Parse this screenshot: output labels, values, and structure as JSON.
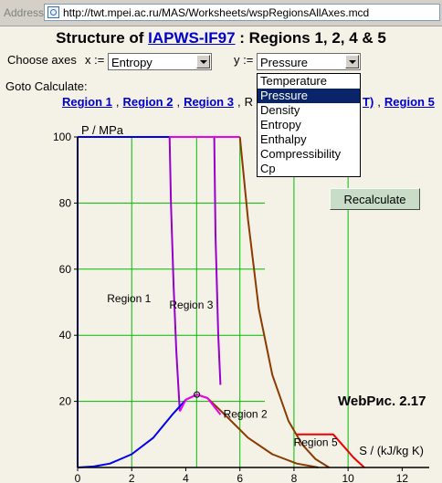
{
  "browser": {
    "address_label": "Address",
    "url": "http://twt.mpei.ac.ru/MAS/Worksheets/wspRegionsAllAxes.mcd"
  },
  "header": {
    "title_prefix": "Structure of ",
    "title_link": "IAPWS-IF97",
    "title_suffix": " : Regions 1, 2, 4 & 5"
  },
  "axes_form": {
    "choose_label": "Choose axes",
    "x_label": "x :=",
    "x_value": "Entropy",
    "y_label": "y :=",
    "y_value": "Pressure",
    "y_options": [
      "Temperature",
      "Pressure",
      "Density",
      "Entropy",
      "Enthalpy",
      "Compressibility",
      "Cp"
    ],
    "y_selected_index": 1
  },
  "goto": {
    "label": "Goto Calculate:",
    "links": [
      "Region 1",
      "Region 2",
      "Region 3",
      "R",
      "T)",
      "Region 5"
    ]
  },
  "recalculate_label": "Recalculate",
  "watermark": "WebРис. 2.17",
  "chart_data": {
    "type": "line",
    "ylabel": "P / MPa",
    "xlabel": "S / (kJ/kg K)",
    "xlim": [
      0,
      13
    ],
    "ylim": [
      0,
      100
    ],
    "x_ticks": [
      0,
      2,
      4,
      6,
      8,
      10,
      12
    ],
    "y_ticks": [
      20,
      40,
      60,
      80,
      100
    ],
    "grid_x": [
      2,
      4.4,
      6,
      8,
      10
    ],
    "grid_y": [
      20,
      40,
      60,
      80
    ],
    "region_labels": [
      {
        "text": "Region 1",
        "x": 1.9,
        "y": 50
      },
      {
        "text": "Region 3",
        "x": 4.2,
        "y": 48
      },
      {
        "text": "Region 2",
        "x": 6.2,
        "y": 15
      },
      {
        "text": "Region 5",
        "x": 8.8,
        "y": 6.5
      }
    ],
    "critical_point": {
      "x": 4.41,
      "y": 22.06
    },
    "colors": {
      "region1": "#0000ee",
      "region3": "#9900cc",
      "saturation": "#ee00ee",
      "region2": "#8b3a00",
      "region5": "#ee0000",
      "grid": "#00bb00"
    },
    "series": [
      {
        "key": "region1_left",
        "x": [
          0,
          0
        ],
        "y": [
          0,
          100
        ]
      },
      {
        "key": "region1_top",
        "x": [
          0,
          3.4
        ],
        "y": [
          100,
          100
        ]
      },
      {
        "key": "region1_right",
        "x": [
          3.4,
          3.45,
          3.55,
          3.65,
          3.78
        ],
        "y": [
          100,
          80,
          55,
          35,
          17
        ]
      },
      {
        "key": "sat_left",
        "x": [
          0,
          0.6,
          1.2,
          2.0,
          2.8,
          3.5,
          4.0,
          4.41
        ],
        "y": [
          0,
          0.3,
          1.2,
          4,
          9,
          16,
          20.5,
          22.06
        ]
      },
      {
        "key": "sat_right",
        "x": [
          4.41,
          4.8,
          5.5,
          6.3,
          7.2,
          8.1,
          8.9
        ],
        "y": [
          22.06,
          21,
          15.5,
          9,
          4,
          1.2,
          0
        ]
      },
      {
        "key": "region3_inner",
        "x": [
          5.05,
          5.1,
          5.2,
          5.28
        ],
        "y": [
          100,
          70,
          40,
          25
        ]
      },
      {
        "key": "region3_top",
        "x": [
          3.4,
          6.0
        ],
        "y": [
          100,
          100
        ]
      },
      {
        "key": "region2_boundary",
        "x": [
          6.0,
          6.3,
          6.7,
          7.2,
          7.8,
          8.3,
          8.8,
          9.3
        ],
        "y": [
          100,
          75,
          48,
          28,
          14,
          7,
          2.5,
          0
        ]
      },
      {
        "key": "region5",
        "x": [
          8.1,
          9.45,
          10.2,
          10.6
        ],
        "y": [
          10,
          10,
          3,
          0
        ]
      }
    ]
  }
}
